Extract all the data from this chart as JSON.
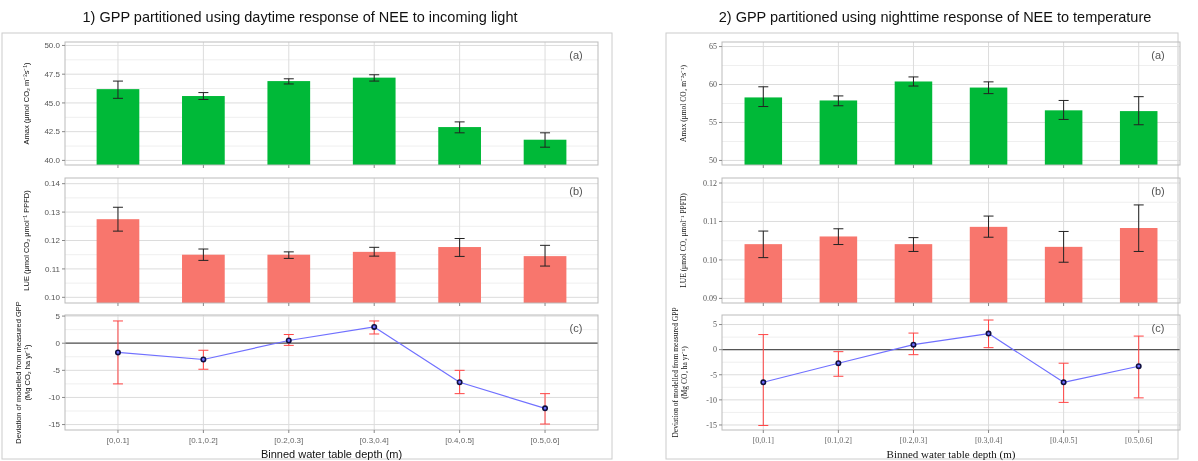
{
  "chart_data": [
    {
      "type": "bar",
      "title": "1) GPP partitioned using daytime response of NEE to incoming light",
      "ylabel": "Amax (μmol CO₂ m⁻²s⁻¹)",
      "annotations": [
        "(a)"
      ],
      "categories": [
        null,
        null,
        null,
        null,
        null,
        null
      ],
      "values": [
        46.2,
        45.6,
        46.9,
        47.2,
        42.9,
        41.8
      ],
      "errors": [
        [
          45.4,
          46.9
        ],
        [
          45.3,
          45.9
        ],
        [
          46.65,
          47.1
        ],
        [
          46.9,
          47.45
        ],
        [
          42.4,
          43.35
        ],
        [
          41.15,
          42.4
        ]
      ],
      "color": "#00b938",
      "ylim": [
        39.6,
        50.3
      ],
      "yticks": [
        {
          "value": 40,
          "label": "40.0"
        },
        42.5,
        {
          "value": 45,
          "label": "45.0"
        },
        47.5,
        {
          "value": 50,
          "label": "50.0"
        }
      ],
      "grid": true,
      "tick_labels": "y"
    },
    {
      "type": "bar",
      "ylabel": "LUE (μmol CO₂ μmol⁻¹ PPFD)",
      "annotations": [
        "(b)"
      ],
      "categories": [
        null,
        null,
        null,
        null,
        null,
        null
      ],
      "values": [
        0.1275,
        0.115,
        0.115,
        0.116,
        0.1177,
        0.1145
      ],
      "errors": [
        [
          0.1233,
          0.1317
        ],
        [
          0.113,
          0.117
        ],
        [
          0.1137,
          0.116
        ],
        [
          0.1145,
          0.1176
        ],
        [
          0.1144,
          0.1207
        ],
        [
          0.111,
          0.1183
        ]
      ],
      "color": "#f8766d",
      "ylim": [
        0.098,
        0.142
      ],
      "yticks": [
        {
          "value": 0.1,
          "label": "0.10"
        },
        0.11,
        0.12,
        0.13,
        0.14
      ],
      "grid": true,
      "tick_labels": "y"
    },
    {
      "type": "line",
      "xlabel": "Binned water table depth (m)",
      "ylabel": "Deviation of modelled from measured GPP (Mg CO₂ ha yr⁻¹)",
      "annotations": [
        "(c)"
      ],
      "categories": [
        "[0,0.1]",
        "[0.1,0.2]",
        "[0.2,0.3]",
        "[0.3,0.4]",
        "[0.4,0.5]",
        "[0.5,0.6]"
      ],
      "values": [
        -1.7,
        -3.0,
        0.5,
        3.0,
        -7.2,
        -12.0
      ],
      "errors": [
        [
          -7.5,
          4.1
        ],
        [
          -4.8,
          -1.3
        ],
        [
          -0.4,
          1.6
        ],
        [
          1.7,
          4.1
        ],
        [
          -9.3,
          -5.0
        ],
        [
          -14.9,
          -9.3
        ]
      ],
      "color": "#7070ff",
      "marker": "circle",
      "ylim": [
        -16,
        5.2
      ],
      "yticks": [
        -15,
        -10,
        -5,
        0,
        5
      ],
      "ref_lines": [
        {
          "axis": "y",
          "value": 0,
          "color": "#555555"
        }
      ],
      "grid": true
    },
    {
      "type": "bar",
      "title": "2) GPP partitioned using nighttime response of NEE to temperature",
      "ylabel": "Amax (μmol CO₂ m⁻²s⁻¹)",
      "annotations": [
        "(a)"
      ],
      "categories": [
        null,
        null,
        null,
        null,
        null,
        null
      ],
      "values": [
        58.3,
        57.9,
        60.4,
        59.6,
        56.6,
        56.5
      ],
      "errors": [
        [
          57.1,
          59.7
        ],
        [
          57.2,
          58.5
        ],
        [
          59.8,
          61.0
        ],
        [
          58.8,
          60.35
        ],
        [
          55.4,
          57.9
        ],
        [
          54.7,
          58.4
        ]
      ],
      "color": "#00b938",
      "ylim": [
        49.4,
        65.6
      ],
      "yticks": [
        50,
        55,
        60,
        65
      ],
      "grid": true,
      "tick_labels": "y"
    },
    {
      "type": "bar",
      "ylabel": "LUE (μmol CO₂ μmol⁻¹ PPFD)",
      "annotations": [
        "(b)"
      ],
      "categories": [
        null,
        null,
        null,
        null,
        null,
        null
      ],
      "values": [
        0.1041,
        0.1061,
        0.1041,
        0.1086,
        0.1034,
        0.1083
      ],
      "errors": [
        [
          0.1006,
          0.1075
        ],
        [
          0.104,
          0.1081
        ],
        [
          0.1022,
          0.1058
        ],
        [
          0.1059,
          0.1114
        ],
        [
          0.0994,
          0.1074
        ],
        [
          0.1022,
          0.1143
        ]
      ],
      "color": "#f8766d",
      "ylim": [
        0.0888,
        0.1213
      ],
      "yticks": [
        {
          "value": 0.09,
          "label": "0.09"
        },
        {
          "value": 0.1,
          "label": "0.10"
        },
        {
          "value": 0.11,
          "label": "0.11"
        },
        {
          "value": 0.12,
          "label": "0.12"
        }
      ],
      "grid": true,
      "tick_labels": "y"
    },
    {
      "type": "line",
      "xlabel": "Binned water table depth (m)",
      "ylabel": "Deviation of modelled from measured GPP (Mg CO₂ ha yr⁻¹)",
      "annotations": [
        "(c)"
      ],
      "categories": [
        "[0,0.1]",
        "[0.1,0.2]",
        "[0.2,0.3]",
        "[0.3,0.4]",
        "[0.4,0.5]",
        "[0.5,0.6]"
      ],
      "values": [
        -6.5,
        -2.7,
        1.0,
        3.2,
        -6.5,
        -3.3
      ],
      "errors": [
        [
          -15.1,
          3.0
        ],
        [
          -5.3,
          -0.4
        ],
        [
          -1.0,
          3.3
        ],
        [
          0.4,
          5.9
        ],
        [
          -10.5,
          -2.7
        ],
        [
          -9.6,
          2.7
        ]
      ],
      "color": "#7070ff",
      "marker": "circle",
      "ylim": [
        -16,
        6.9
      ],
      "yticks": [
        -15,
        -10,
        -5,
        0,
        5
      ],
      "ref_lines": [
        {
          "axis": "y",
          "value": 0,
          "color": "#555555"
        }
      ],
      "grid": true
    }
  ]
}
